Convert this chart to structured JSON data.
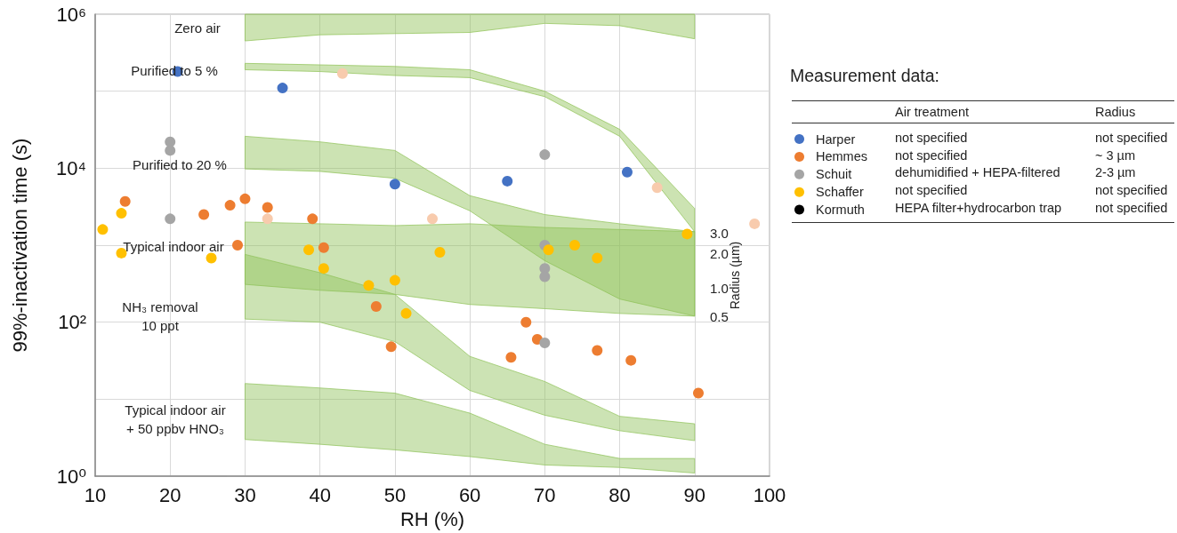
{
  "chart_data": [
    {
      "type": "scatter",
      "xlabel": "RH (%)",
      "ylabel": "99%-inactivation time (s)",
      "y2label": "Radius (µm)",
      "xlim": [
        10,
        100
      ],
      "xticks": [
        10,
        20,
        30,
        40,
        50,
        60,
        70,
        80,
        90,
        100
      ],
      "ylim": [
        1,
        1000000
      ],
      "yticks": [
        {
          "value": 1,
          "label": "10⁰"
        },
        {
          "value": 10,
          "label": null
        },
        {
          "value": 100,
          "label": "10²"
        },
        {
          "value": 1000,
          "label": null
        },
        {
          "value": 10000,
          "label": "10⁴"
        },
        {
          "value": 100000,
          "label": null
        },
        {
          "value": 1000000,
          "label": "10⁶"
        }
      ],
      "log": "y",
      "grid": true,
      "legend": "right",
      "marker": "circle",
      "series": [
        {
          "type": "line",
          "marker": "none",
          "color": "#8ec154",
          "x": [
            30,
            40,
            50,
            60,
            70,
            80,
            90
          ],
          "values": [
            null,
            null,
            null,
            null,
            null,
            null,
            null
          ],
          "upper": [
            1000000,
            1000000,
            1000000,
            1000000,
            1000000,
            1000000,
            1000000
          ],
          "lower": [
            450000,
            540000,
            560000,
            580000,
            760000,
            710000,
            480000
          ]
        },
        {
          "type": "line",
          "marker": "none",
          "color": "#8ec155",
          "x": [
            30,
            40,
            50,
            60,
            70,
            80,
            90
          ],
          "values": [
            null,
            null,
            null,
            null,
            null,
            null,
            null
          ],
          "upper": [
            230000,
            220000,
            210000,
            190000,
            100000,
            32000,
            3000
          ],
          "lower": [
            190000,
            180000,
            160000,
            150000,
            85000,
            26000,
            1500
          ]
        },
        {
          "type": "line",
          "marker": "none",
          "color": "#8ec156",
          "x": [
            30,
            40,
            50,
            60,
            70,
            80,
            90
          ],
          "values": [
            null,
            null,
            null,
            null,
            null,
            null,
            null
          ],
          "upper": [
            26000,
            22000,
            17000,
            4400,
            2500,
            1900,
            1500
          ],
          "lower": [
            9800,
            9100,
            7400,
            2800,
            630,
            200,
            120
          ]
        },
        {
          "type": "line",
          "marker": "none",
          "color": "#8ec157",
          "x": [
            30,
            40,
            50,
            60,
            70,
            80,
            90
          ],
          "values": [
            null,
            null,
            null,
            null,
            null,
            null,
            null
          ],
          "upper": [
            2000,
            1900,
            1800,
            1900,
            1700,
            1600,
            1500
          ],
          "lower": [
            310,
            260,
            230,
            170,
            150,
            130,
            120
          ]
        },
        {
          "type": "line",
          "marker": "none",
          "color": "#8ec158",
          "x": [
            30,
            40,
            50,
            60,
            70,
            80,
            90
          ],
          "values": [
            null,
            null,
            null,
            null,
            null,
            null,
            null
          ],
          "upper": [
            760,
            440,
            230,
            36,
            17,
            6,
            4.8
          ],
          "lower": [
            110,
            100,
            56,
            13,
            6.2,
            3.9,
            2.9
          ]
        },
        {
          "type": "line",
          "marker": "none",
          "color": "#8ec159",
          "x": [
            30,
            40,
            50,
            60,
            70,
            80,
            90
          ],
          "values": [
            null,
            null,
            null,
            null,
            null,
            null,
            null
          ],
          "upper": [
            16,
            14,
            12,
            6.6,
            2.6,
            1.7,
            1.7
          ],
          "lower": [
            3,
            2.6,
            2.2,
            1.8,
            1.4,
            1.3,
            1.1
          ]
        },
        {
          "name": "Harper",
          "color": "#4472c4",
          "x": [
            21,
            35,
            50,
            65,
            81
          ],
          "values": [
            180000,
            110000,
            6200,
            6800,
            8900
          ]
        },
        {
          "name": "Hemmes",
          "color": "#ed7d31",
          "x": [
            14,
            24.5,
            28,
            30,
            33,
            29,
            39,
            40.5,
            47.5,
            49.5,
            67.5,
            69,
            65.5,
            77,
            81.5,
            90.5
          ],
          "values": [
            3700,
            2500,
            3300,
            4000,
            3100,
            1000,
            2200,
            930,
            160,
            48,
            100,
            60,
            35,
            43,
            32,
            12
          ]
        },
        {
          "name": "Schuit",
          "color": "#a5a5a5",
          "x": [
            20,
            20,
            20,
            70,
            70,
            70,
            70,
            70
          ],
          "values": [
            22000,
            17000,
            2200,
            15000,
            1000,
            500,
            390,
            54
          ]
        },
        {
          "name": "Schaffer",
          "color": "#ffc000",
          "x": [
            11,
            13.5,
            13.5,
            25.5,
            38.5,
            40.5,
            46.5,
            50,
            51.5,
            56,
            70.5,
            74,
            77,
            89
          ],
          "values": [
            1600,
            2600,
            790,
            680,
            870,
            500,
            300,
            350,
            130,
            810,
            870,
            1000,
            680,
            1400
          ]
        },
        {
          "name": "Kormuth",
          "color": "#000000"
        },
        {
          "color": "#f8cbad",
          "x": [
            43,
            33,
            55,
            85,
            98
          ],
          "values": [
            170000,
            2200,
            2200,
            5600,
            1900
          ]
        }
      ],
      "annotations": [
        "Zero air",
        "Purified to 5 %",
        "Purified to 20 %",
        "Typical indoor air",
        "NH₃ removal\n10 ppt",
        "Typical indoor air\n+ 50 ppbv HNO₃",
        "3.0",
        "2.0",
        "1.0",
        "0.5"
      ]
    },
    {
      "type": "other",
      "title": "Measurement data:",
      "annotations": [
        "Air treatment",
        "Radius",
        "not specified",
        "not specified",
        "not specified",
        "~ 3 µm",
        "dehumidified + HEPA-filtered",
        "2-3 µm",
        "not specified",
        "not specified",
        "HEPA filter+hydrocarbon trap",
        "not specified"
      ]
    }
  ]
}
